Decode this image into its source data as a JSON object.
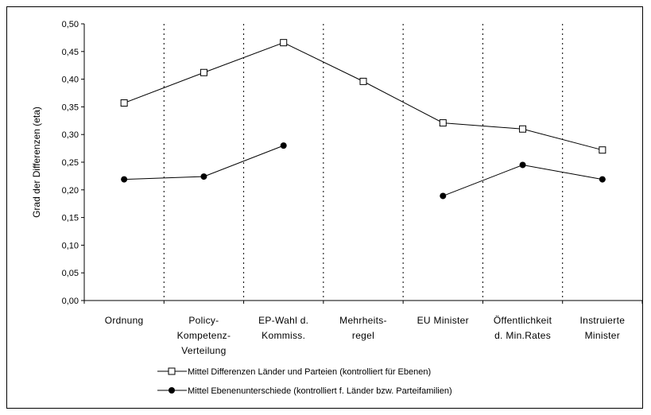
{
  "chart_data": {
    "type": "line",
    "ylabel": "Grad der Differenzen (eta)",
    "ylim": [
      0,
      0.5
    ],
    "yticks": [
      "0,00",
      "0,05",
      "0,10",
      "0,15",
      "0,20",
      "0,25",
      "0,30",
      "0,35",
      "0,40",
      "0,45",
      "0,50"
    ],
    "categories": [
      [
        "Ordnung"
      ],
      [
        "Policy-",
        "Kompetenz-",
        "Verteilung"
      ],
      [
        "EP-Wahl d.",
        "Kommiss."
      ],
      [
        "Mehrheits-",
        "regel"
      ],
      [
        "EU Minister"
      ],
      [
        "Öffentlichkeit",
        "d. Min.Rates"
      ],
      [
        "Instruierte",
        "Minister"
      ]
    ],
    "series": [
      {
        "name": "Mittel Differenzen Länder und Parteien (kontrolliert für Ebenen)",
        "marker": "square-open",
        "values": [
          0.357,
          0.412,
          0.466,
          0.396,
          0.321,
          0.31,
          0.272
        ]
      },
      {
        "name": "Mittel Ebenenunterschiede (kontrolliert f. Länder bzw. Parteifamilien)",
        "marker": "circle-filled",
        "values": [
          0.219,
          0.224,
          0.28,
          null,
          0.189,
          0.245,
          0.219
        ]
      }
    ],
    "grid": "vertical dotted separators between categories",
    "legend": "bottom"
  }
}
